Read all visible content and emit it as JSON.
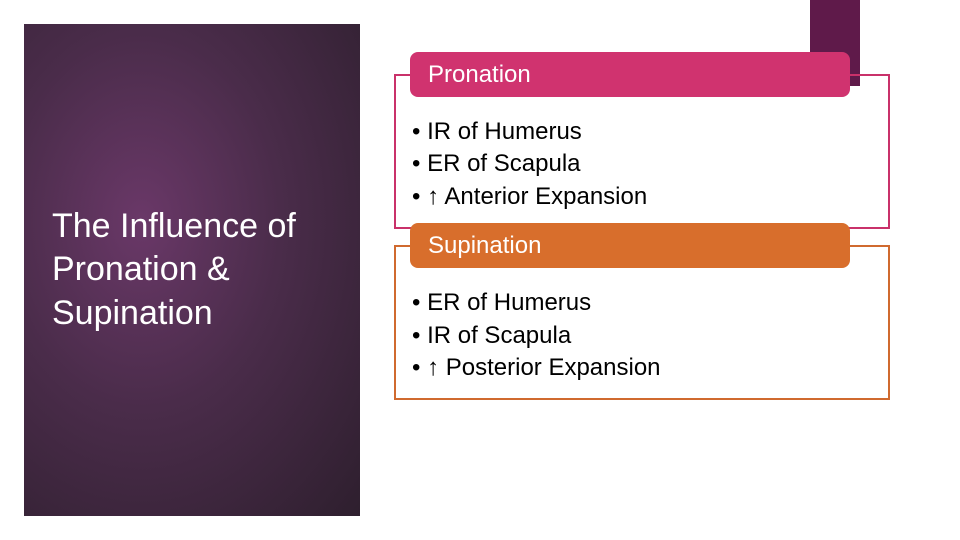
{
  "left_panel": {
    "title": "The Influence of Pronation & Supination",
    "background_gradient": {
      "center_color": "#6a3868",
      "mid_color": "#4a2c4a",
      "edge_color": "#2e1f2e"
    },
    "title_color": "#ffffff",
    "title_fontsize": 34
  },
  "accent_block": {
    "color": "#5f1a4a",
    "width": 50,
    "height": 86
  },
  "sections": [
    {
      "header": "Pronation",
      "header_bg": "#d0336f",
      "border_color": "#c9316a",
      "bullets": [
        "IR of Humerus",
        "ER of Scapula",
        "↑ Anterior Expansion"
      ]
    },
    {
      "header": "Supination",
      "header_bg": "#d86e2c",
      "border_color": "#d06a2f",
      "bullets": [
        "ER of Humerus",
        "IR of Scapula",
        "↑ Posterior Expansion"
      ]
    }
  ],
  "layout": {
    "slide_width": 960,
    "slide_height": 540,
    "body_fontsize": 24,
    "body_color": "#000000"
  }
}
